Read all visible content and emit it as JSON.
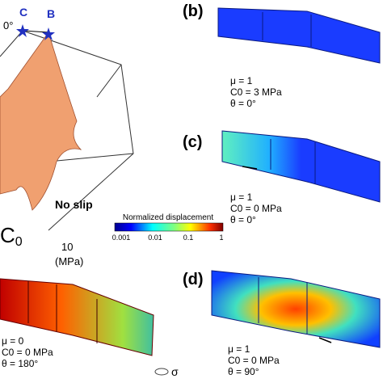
{
  "panel_a": {
    "star_c": "C",
    "star_b": "B",
    "angle": "0°",
    "no_slip": "No slip",
    "axis_label": "C",
    "axis_sub": "0",
    "tick": "10",
    "unit": "(MPa)"
  },
  "colorbar": {
    "title": "Normalized displacement",
    "ticks": [
      "0.001",
      "0.01",
      "0.1",
      "1"
    ]
  },
  "panel_b": {
    "label": "(b)",
    "mu": "μ = 1",
    "c0": "C0 = 3 MPa",
    "theta": "θ = 0°"
  },
  "panel_c": {
    "label": "(c)",
    "mu": "μ = 1",
    "c0": "C0 = 0 MPa",
    "theta": "θ = 0°"
  },
  "panel_d": {
    "label": "(d)",
    "mu": "μ = 1",
    "c0": "C0 = 0 MPa",
    "theta": "θ = 90°"
  },
  "panel_e": {
    "mu": "μ = 0",
    "c0": "C0 = 0 MPa",
    "theta": "θ = 180°"
  },
  "sigma": "σ"
}
